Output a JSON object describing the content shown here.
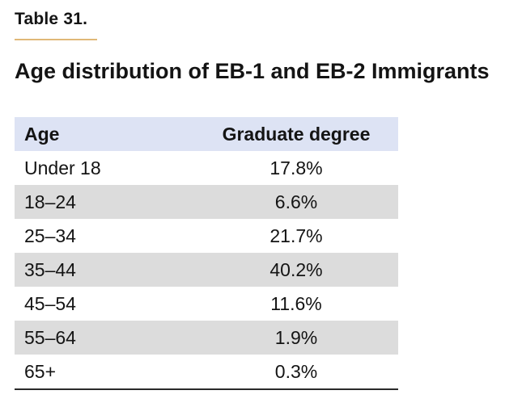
{
  "table_number": "Table 31.",
  "title": "Age distribution of EB-1 and EB-2 Immigrants",
  "columns": [
    "Age",
    "Graduate degree"
  ],
  "rows": [
    {
      "age": "Under 18",
      "value": "17.8%"
    },
    {
      "age": "18–24",
      "value": "6.6%"
    },
    {
      "age": "25–34",
      "value": "21.7%"
    },
    {
      "age": "35–44",
      "value": "40.2%"
    },
    {
      "age": "45–54",
      "value": "11.6%"
    },
    {
      "age": "55–64",
      "value": "1.9%"
    },
    {
      "age": "65+",
      "value": "0.3%"
    }
  ],
  "colors": {
    "accent_rule": "#e0b878",
    "header_bg": "#dde3f4",
    "stripe_bg": "#dcdcdc"
  }
}
